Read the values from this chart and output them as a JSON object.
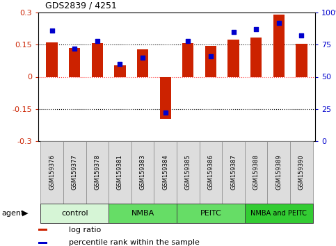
{
  "title": "GDS2839 / 4251",
  "samples": [
    "GSM159376",
    "GSM159377",
    "GSM159378",
    "GSM159381",
    "GSM159383",
    "GSM159384",
    "GSM159385",
    "GSM159386",
    "GSM159387",
    "GSM159388",
    "GSM159389",
    "GSM159390"
  ],
  "log_ratios": [
    0.162,
    0.135,
    0.157,
    0.055,
    0.128,
    -0.195,
    0.157,
    0.143,
    0.172,
    0.182,
    0.29,
    0.155
  ],
  "percentile_ranks": [
    86,
    72,
    78,
    60,
    65,
    22,
    78,
    66,
    85,
    87,
    92,
    82
  ],
  "groups": [
    {
      "label": "control",
      "start": 0,
      "end": 3,
      "color": "#d6f5d6"
    },
    {
      "label": "NMBA",
      "start": 3,
      "end": 6,
      "color": "#66dd66"
    },
    {
      "label": "PEITC",
      "start": 6,
      "end": 9,
      "color": "#66dd66"
    },
    {
      "label": "NMBA and PEITC",
      "start": 9,
      "end": 12,
      "color": "#33cc33"
    }
  ],
  "ylim_left": [
    -0.3,
    0.3
  ],
  "ylim_right": [
    0,
    100
  ],
  "yticks_left": [
    -0.3,
    -0.15,
    0.0,
    0.15,
    0.3
  ],
  "yticks_right": [
    0,
    25,
    50,
    75,
    100
  ],
  "ytick_labels_left": [
    "-0.3",
    "-0.15",
    "0",
    "0.15",
    "0.3"
  ],
  "ytick_labels_right": [
    "0",
    "25",
    "50",
    "75",
    "100%"
  ],
  "bar_color": "#cc2200",
  "dot_color": "#0000cc",
  "label_bg": "#dddddd",
  "legend_items": [
    {
      "color": "#cc2200",
      "label": "log ratio"
    },
    {
      "color": "#0000cc",
      "label": "percentile rank within the sample"
    }
  ]
}
